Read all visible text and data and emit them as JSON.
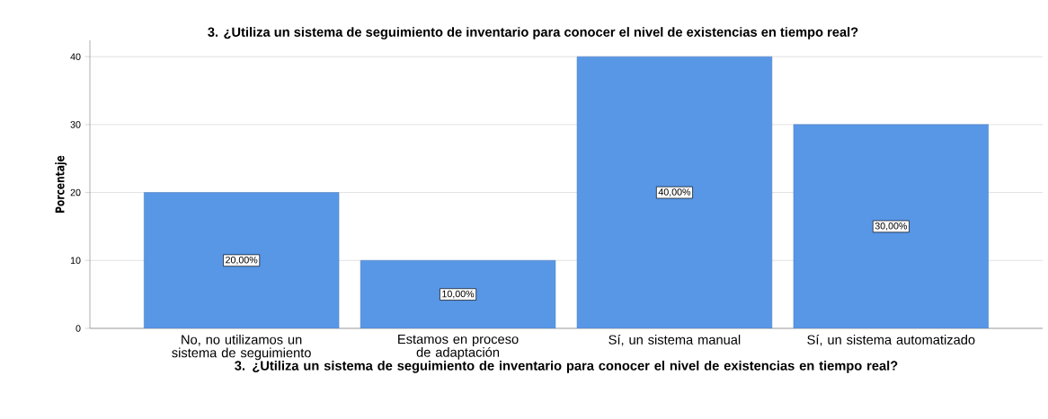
{
  "chart_data": {
    "type": "bar",
    "title": "3. ¿Utiliza un sistema de seguimiento de inventario para conocer el nivel de existencias en tiempo real?",
    "xlabel": "3. ¿Utiliza un sistema de seguimiento de inventario para conocer el nivel de existencias en tiempo real?",
    "ylabel": "Porcentaje",
    "categories": [
      "No, no utilizamos un sistema de seguimiento",
      "Estamos en proceso de adaptación",
      "Sí, un sistema manual",
      "Sí, un sistema automatizado"
    ],
    "values": [
      20,
      10,
      40,
      30
    ],
    "value_labels": [
      "20,00%",
      "10,00%",
      "40,00%",
      "30,00%"
    ],
    "color": "#5896e6",
    "ylim": [
      0,
      42.4
    ],
    "yticks": [
      0,
      10,
      20,
      30,
      40
    ],
    "grid": "y"
  }
}
